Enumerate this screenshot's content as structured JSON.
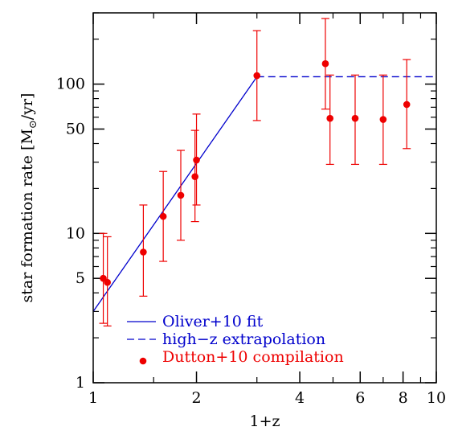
{
  "chart_data": {
    "type": "scatter",
    "xscale": "log",
    "yscale": "log",
    "xlim": [
      1,
      10
    ],
    "ylim": [
      1,
      300
    ],
    "xlabel": "1+z",
    "ylabel": "star formation rate [M⊙/yr]",
    "ylabel_parts": {
      "prefix": "star formation rate [M",
      "sub": "⊙",
      "suffix": "/yr]"
    },
    "x_ticks": [
      {
        "value": 1,
        "label": "1"
      },
      {
        "value": 2,
        "label": "2"
      },
      {
        "value": 4,
        "label": "4"
      },
      {
        "value": 6,
        "label": "6"
      },
      {
        "value": 8,
        "label": "8"
      },
      {
        "value": 10,
        "label": "10"
      }
    ],
    "x_minor_ticks": [
      1.5,
      3,
      5,
      7,
      9
    ],
    "y_ticks": [
      {
        "value": 1,
        "label": "1"
      },
      {
        "value": 5,
        "label": "5"
      },
      {
        "value": 10,
        "label": "10"
      },
      {
        "value": 50,
        "label": "50"
      },
      {
        "value": 100,
        "label": "100"
      }
    ],
    "y_minor_ticks": [
      2,
      3,
      4,
      6,
      7,
      8,
      9,
      20,
      30,
      40,
      60,
      70,
      80,
      90,
      200,
      300
    ],
    "series": [
      {
        "name": "Oliver+10 fit",
        "kind": "line",
        "style": "solid",
        "color": "#0000cc",
        "x": [
          1,
          3
        ],
        "y": [
          3,
          112
        ]
      },
      {
        "name": "high−z extrapolation",
        "kind": "line",
        "style": "dashed",
        "color": "#0000cc",
        "x": [
          3,
          10
        ],
        "y": [
          112,
          112
        ]
      },
      {
        "name": "Dutton+10 compilation",
        "kind": "points",
        "color": "#ee0000",
        "points": [
          {
            "x": 1.07,
            "y": 5.0,
            "ylo": 2.5,
            "yhi": 10.0
          },
          {
            "x": 1.1,
            "y": 4.7,
            "ylo": 2.4,
            "yhi": 9.5
          },
          {
            "x": 1.4,
            "y": 7.5,
            "ylo": 3.8,
            "yhi": 15.5
          },
          {
            "x": 1.6,
            "y": 13.0,
            "ylo": 6.5,
            "yhi": 26.0
          },
          {
            "x": 1.8,
            "y": 18.0,
            "ylo": 9.0,
            "yhi": 36.0
          },
          {
            "x": 1.98,
            "y": 24.0,
            "ylo": 12.0,
            "yhi": 49.0
          },
          {
            "x": 2.0,
            "y": 31.0,
            "ylo": 15.5,
            "yhi": 63.0
          },
          {
            "x": 3.0,
            "y": 114.0,
            "ylo": 57.0,
            "yhi": 228.0
          },
          {
            "x": 4.75,
            "y": 137.0,
            "ylo": 68.0,
            "yhi": 275.0
          },
          {
            "x": 4.9,
            "y": 59.0,
            "ylo": 29.0,
            "yhi": 115.0
          },
          {
            "x": 5.8,
            "y": 59.0,
            "ylo": 29.0,
            "yhi": 115.0
          },
          {
            "x": 7.0,
            "y": 58.0,
            "ylo": 29.0,
            "yhi": 115.0
          },
          {
            "x": 8.2,
            "y": 73.0,
            "ylo": 37.0,
            "yhi": 146.0
          }
        ]
      }
    ],
    "legend": {
      "placement": "bottom-left",
      "entries": [
        {
          "label": "Oliver+10 fit",
          "color": "#0000cc",
          "marker": "solid-line"
        },
        {
          "label": "high−z extrapolation",
          "color": "#0000cc",
          "marker": "dashed-line"
        },
        {
          "label": "Dutton+10 compilation",
          "color": "#ee0000",
          "marker": "dot"
        }
      ]
    },
    "grid": false
  }
}
